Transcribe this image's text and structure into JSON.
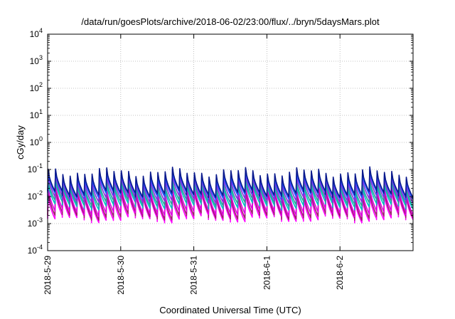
{
  "chart_data": {
    "type": "line",
    "title": "/data/run/goesPlots/archive/2018-06-02/23:00/flux/../bryn/5daysMars.plot",
    "xlabel": "Coordinated Universal Time (UTC)",
    "ylabel": "cGy/day",
    "y_scale": "log",
    "ylim_exponents": [
      -4,
      4
    ],
    "y_ticks": [
      {
        "base": "10",
        "exp": "4"
      },
      {
        "base": "10",
        "exp": "3"
      },
      {
        "base": "10",
        "exp": "2"
      },
      {
        "base": "10",
        "exp": "1"
      },
      {
        "base": "10",
        "exp": "0"
      },
      {
        "base": "10",
        "exp": "-1"
      },
      {
        "base": "10",
        "exp": "-2"
      },
      {
        "base": "10",
        "exp": "-3"
      },
      {
        "base": "10",
        "exp": "-4"
      }
    ],
    "x_ticks": [
      "2018-5-29",
      "2018-5-30",
      "2018-5-31",
      "2018-6-1",
      "2018-6-2"
    ],
    "xlim_days": [
      0,
      5
    ],
    "grid": true,
    "pattern": {
      "cycles_per_day": 10,
      "description": "sawtooth: sharp rise to peak, gradual decay"
    },
    "series": [
      {
        "color": "#ff00ff",
        "peak": 0.012,
        "trough": 0.0015
      },
      {
        "color": "#a0206e",
        "peak": 0.016,
        "trough": 0.0019
      },
      {
        "color": "#e000e0",
        "peak": 0.021,
        "trough": 0.0026
      },
      {
        "color": "#00c0c0",
        "peak": 0.028,
        "trough": 0.0045
      },
      {
        "color": "#2aa198",
        "peak": 0.035,
        "trough": 0.006
      },
      {
        "color": "#8a2be2",
        "peak": 0.05,
        "trough": 0.008
      },
      {
        "color": "#1f4fff",
        "peak": 0.065,
        "trough": 0.011
      },
      {
        "color": "#0a1a8c",
        "peak": 0.08,
        "trough": 0.013
      }
    ]
  }
}
